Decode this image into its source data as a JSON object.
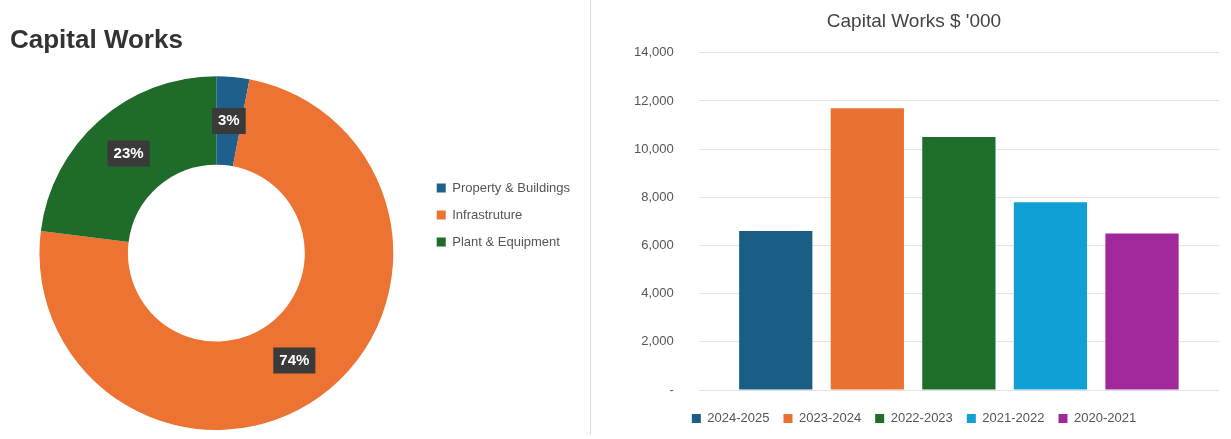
{
  "chart_data": [
    {
      "type": "donut",
      "title": "Capital Works",
      "categories": [
        "Property & Buildings",
        "Infrastruture",
        "Plant & Equipment"
      ],
      "values": [
        3,
        74,
        23
      ],
      "colors": [
        "#1f5f8b",
        "#ec7332",
        "#1e6b2a"
      ],
      "value_labels": [
        "3%",
        "74%",
        "23%"
      ],
      "legend": "right"
    },
    {
      "type": "bar",
      "title": "Capital Works $ '000",
      "categories": [
        null
      ],
      "series": [
        {
          "name": "2024-2025",
          "color": "#1a5e86",
          "values": [
            6600
          ]
        },
        {
          "name": "2023-2024",
          "color": "#e97132",
          "values": [
            11700
          ]
        },
        {
          "name": "2022-2023",
          "color": "#1d6e2b",
          "values": [
            10500
          ]
        },
        {
          "name": "2021-2022",
          "color": "#11a0d6",
          "values": [
            7800
          ]
        },
        {
          "name": "2020-2021",
          "color": "#a0289b",
          "values": [
            6500
          ]
        }
      ],
      "ylim": [
        0,
        14000
      ],
      "yticks": [
        {
          "value": 0,
          "label": "-"
        },
        {
          "value": 2000,
          "label": "2,000"
        },
        {
          "value": 4000,
          "label": "4,000"
        },
        {
          "value": 6000,
          "label": "6,000"
        },
        {
          "value": 8000,
          "label": "8,000"
        },
        {
          "value": 10000,
          "label": "10,000"
        },
        {
          "value": 12000,
          "label": "12,000"
        },
        {
          "value": 14000,
          "label": "14,000"
        }
      ],
      "grid": "y",
      "legend": "bottom"
    }
  ]
}
